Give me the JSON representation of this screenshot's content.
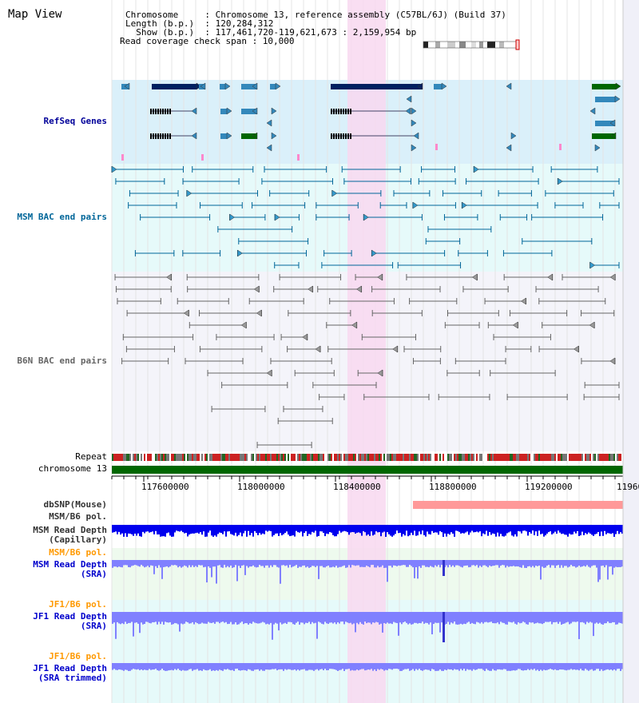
{
  "header": {
    "title": "Map View",
    "info_lines": [
      "Chromosome     : Chromosome 13, reference assembly (C57BL/6J) (Build 37)",
      "Length (b.p.)  : 120,284,312",
      "  Show (b.p.)  : 117,461,720-119,621,673 : 2,159,954 bp",
      "Read coverage check span : 10,000"
    ]
  },
  "tracks": {
    "refseq": {
      "label": "RefSeq Genes",
      "color": "#000099"
    },
    "msm_bac": {
      "label": "MSM BAC end pairs",
      "color": "#006699"
    },
    "b6n_bac": {
      "label": "B6N BAC end pairs",
      "color": "#666666"
    },
    "repeat": {
      "label": "Repeat",
      "color": "#000000"
    },
    "chromosome": {
      "label": "chromosome 13",
      "color": "#000000"
    },
    "dbsnp": {
      "label": "dbSNP(Mouse)",
      "color": "#333333"
    },
    "msm_b6_pol": {
      "label": "MSM/B6 pol.",
      "color": "#333333"
    },
    "msm_depth_cap": {
      "label": "MSM Read Depth\n(Capillary)",
      "color": "#333333"
    },
    "msm_b6_pol2": {
      "label": "MSM/B6 pol.",
      "color": "#ff9900"
    },
    "msm_depth_sra": {
      "label": "MSM Read Depth\n(SRA)",
      "color": "#0000cc"
    },
    "jf1_b6_pol": {
      "label": "JF1/B6 pol.",
      "color": "#ff9900"
    },
    "jf1_depth_sra": {
      "label": "JF1 Read Depth\n(SRA)",
      "color": "#0000cc"
    },
    "jf1_b6_pol2": {
      "label": "JF1/B6 pol.",
      "color": "#ff9900"
    },
    "jf1_depth_trim": {
      "label": "JF1 Read Depth\n(SRA trimmed)",
      "color": "#0000cc"
    }
  },
  "axis": {
    "ticks": [
      "117600000",
      "118000000",
      "118400000",
      "118800000",
      "119200000",
      "11960"
    ]
  },
  "colors": {
    "highlight": "#f8d8f0",
    "refseq_bg": "#daf0fa",
    "msm_bac_bg": "#e6fafa",
    "b6n_bac_bg": "#f4f4fa",
    "gene_dark": "#002060",
    "gene_mid": "#3388bb",
    "gene_green": "#006600",
    "chromosome_bar": "#006600",
    "depth_blue": "#0000ee",
    "depth_light": "#8080ff",
    "pol_red": "#ee3333"
  }
}
